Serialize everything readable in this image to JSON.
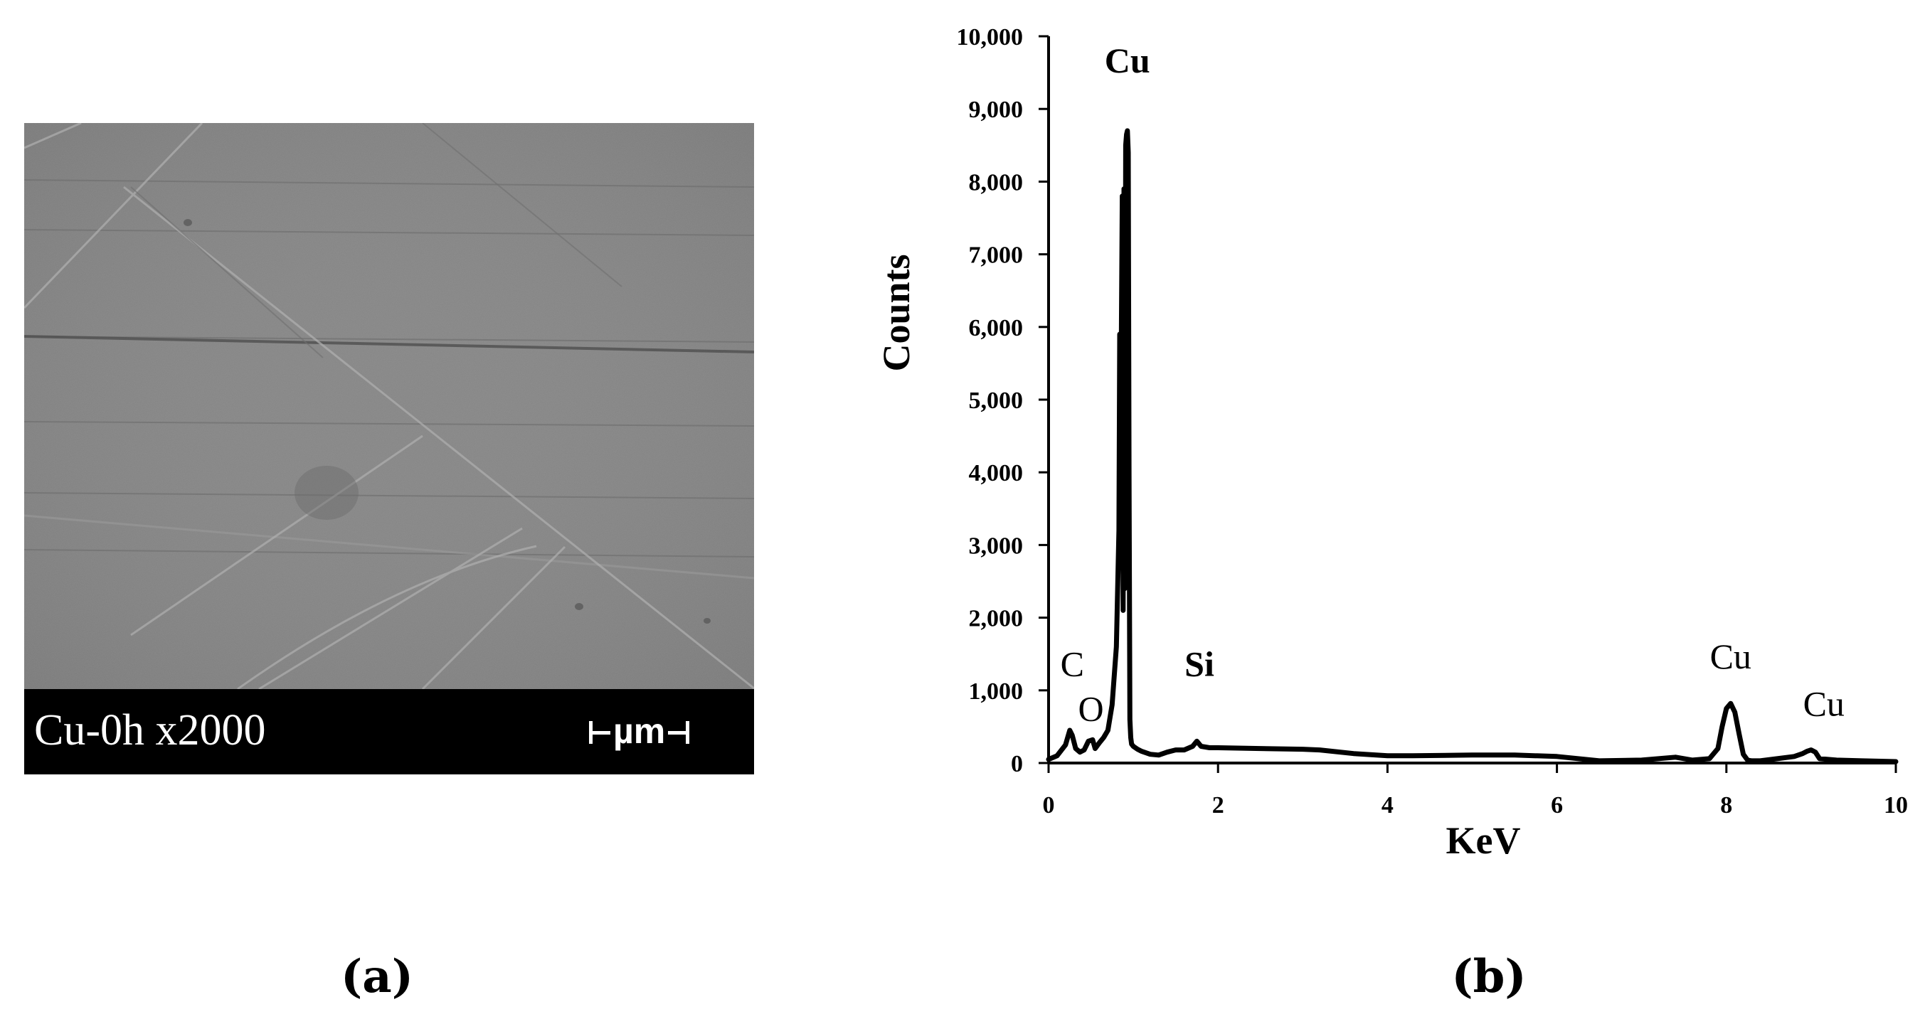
{
  "panel_a": {
    "caption": "(a)",
    "sample_label": "Cu-0h x2000",
    "scale_unit": "µm"
  },
  "panel_b": {
    "caption": "(b)"
  },
  "chart_data": {
    "type": "line",
    "title": "",
    "xlabel": "KeV",
    "ylabel": "Counts",
    "xlim": [
      0,
      10
    ],
    "ylim": [
      0,
      10000
    ],
    "x_ticks": [
      "0",
      "2",
      "4",
      "6",
      "8",
      "10"
    ],
    "y_ticks": [
      "0",
      "1,000",
      "2,000",
      "3,000",
      "4,000",
      "5,000",
      "6,000",
      "7,000",
      "8,000",
      "9,000",
      "10,000"
    ],
    "grid": false,
    "legend": "none",
    "series": [
      {
        "x": [
          0,
          0.1,
          0.2,
          0.25,
          0.28,
          0.32,
          0.37,
          0.42,
          0.47,
          0.52,
          0.55,
          0.6,
          0.65,
          0.7,
          0.75,
          0.8,
          0.83,
          0.84,
          0.85,
          0.86,
          0.87,
          0.88,
          0.89,
          0.9,
          0.91,
          0.92,
          0.93,
          0.94,
          0.95,
          0.96,
          0.97,
          0.98,
          1.0,
          1.05,
          1.1,
          1.2,
          1.3,
          1.4,
          1.5,
          1.6,
          1.7,
          1.75,
          1.8,
          1.9,
          2.0,
          2.5,
          3.0,
          3.2,
          3.6,
          4.0,
          4.3,
          5.0,
          5.5,
          6.0,
          6.5,
          7.0,
          7.4,
          7.6,
          7.8,
          7.9,
          7.95,
          8.0,
          8.05,
          8.1,
          8.15,
          8.2,
          8.25,
          8.3,
          8.4,
          8.6,
          8.8,
          8.9,
          8.95,
          9.0,
          9.05,
          9.1,
          9.3,
          9.6,
          10.0
        ],
        "y": [
          50,
          100,
          250,
          450,
          380,
          200,
          150,
          180,
          300,
          320,
          200,
          280,
          350,
          450,
          800,
          1600,
          3200,
          5900,
          3500,
          6000,
          7800,
          2100,
          7900,
          2400,
          8500,
          8650,
          8700,
          8400,
          4000,
          600,
          350,
          260,
          230,
          190,
          160,
          120,
          110,
          150,
          180,
          180,
          230,
          300,
          230,
          210,
          210,
          200,
          190,
          180,
          130,
          100,
          100,
          110,
          110,
          90,
          30,
          40,
          80,
          40,
          60,
          200,
          500,
          750,
          820,
          700,
          400,
          120,
          40,
          30,
          30,
          60,
          90,
          130,
          160,
          180,
          150,
          60,
          40,
          30,
          20
        ]
      }
    ],
    "annotations": [
      {
        "text": "Cu",
        "x": 0.93,
        "y": 9500,
        "bold": true
      },
      {
        "text": "C",
        "x": 0.28,
        "y": 1200,
        "bold": false
      },
      {
        "text": "O",
        "x": 0.5,
        "y": 580,
        "bold": false
      },
      {
        "text": "Si",
        "x": 1.78,
        "y": 1200,
        "bold": true
      },
      {
        "text": "Cu",
        "x": 8.05,
        "y": 1300,
        "bold": false
      },
      {
        "text": "Cu",
        "x": 9.15,
        "y": 650,
        "bold": false
      }
    ]
  }
}
